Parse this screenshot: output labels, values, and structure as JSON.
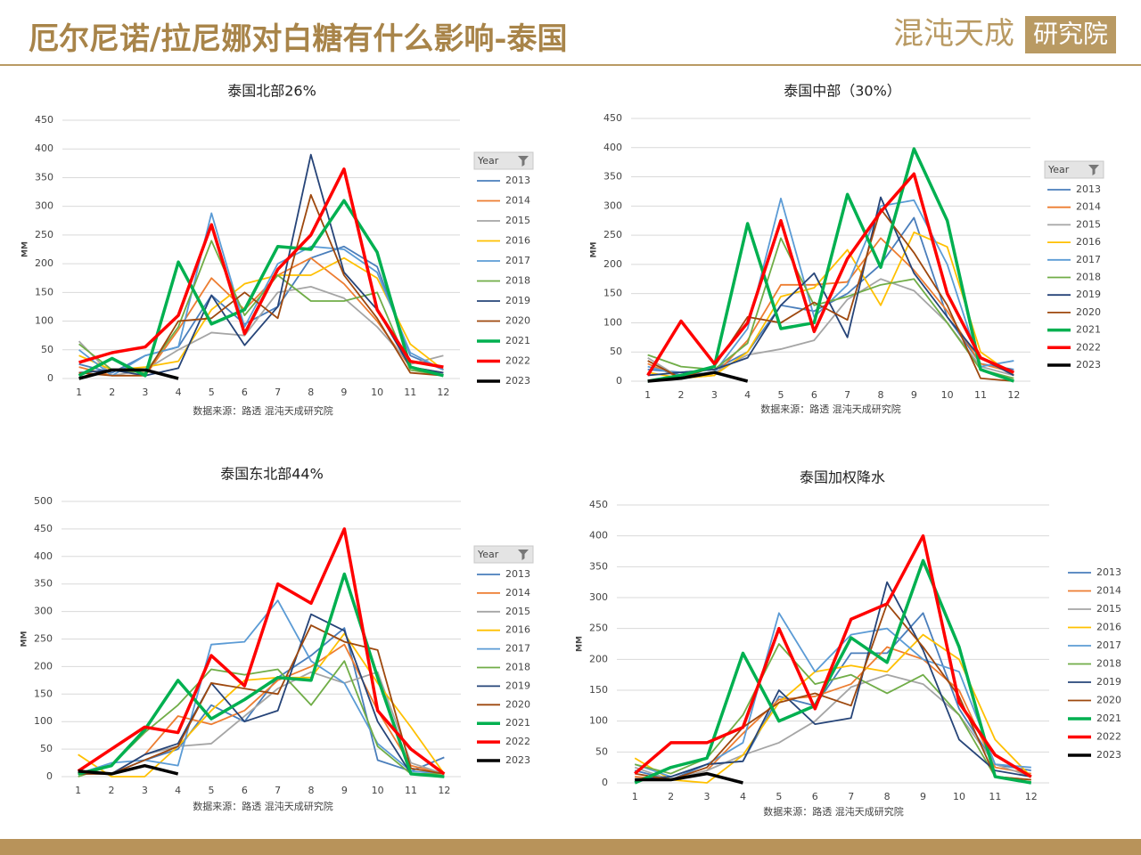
{
  "header": {
    "title": "厄尔尼诺/拉尼娜对白糖有什么影响-泰国",
    "logo": "混沌天成",
    "logo_badge": "研究院"
  },
  "chart_data": [
    {
      "type": "line",
      "title": "泰国北部26%",
      "ylabel": "MM",
      "source": "数据来源：路透 混沌天成研究院",
      "legend_title": "Year",
      "legend": "right",
      "grid": true,
      "categories": [
        1,
        2,
        3,
        4,
        5,
        6,
        7,
        8,
        9,
        10,
        11,
        12
      ],
      "ylim": [
        0,
        450
      ],
      "yticks": [
        0,
        50,
        100,
        150,
        200,
        250,
        300,
        350,
        400,
        450
      ],
      "series": [
        {
          "name": "2013",
          "color": "#4a7ebb",
          "values": [
            25,
            10,
            40,
            55,
            145,
            95,
            125,
            210,
            230,
            195,
            40,
            15
          ]
        },
        {
          "name": "2014",
          "color": "#ed7d31",
          "values": [
            20,
            5,
            5,
            85,
            175,
            120,
            180,
            210,
            165,
            100,
            20,
            10
          ]
        },
        {
          "name": "2015",
          "color": "#a5a5a5",
          "values": [
            65,
            5,
            15,
            50,
            80,
            75,
            150,
            160,
            140,
            90,
            25,
            40
          ]
        },
        {
          "name": "2016",
          "color": "#ffc000",
          "values": [
            40,
            15,
            20,
            30,
            120,
            165,
            180,
            180,
            210,
            175,
            60,
            15
          ]
        },
        {
          "name": "2017",
          "color": "#5b9bd5",
          "values": [
            50,
            5,
            40,
            55,
            288,
            90,
            200,
            230,
            225,
            185,
            45,
            15
          ]
        },
        {
          "name": "2018",
          "color": "#70ad47",
          "values": [
            60,
            15,
            10,
            90,
            240,
            110,
            180,
            135,
            135,
            150,
            15,
            5
          ]
        },
        {
          "name": "2019",
          "color": "#264478",
          "values": [
            10,
            15,
            5,
            18,
            145,
            58,
            125,
            390,
            185,
            120,
            20,
            10
          ]
        },
        {
          "name": "2020",
          "color": "#9e480e",
          "values": [
            10,
            5,
            5,
            100,
            105,
            150,
            105,
            320,
            180,
            105,
            10,
            5
          ]
        },
        {
          "name": "2021",
          "color": "#00b050",
          "width": 3.5,
          "values": [
            5,
            35,
            5,
            203,
            95,
            120,
            230,
            225,
            310,
            220,
            20,
            5
          ]
        },
        {
          "name": "2022",
          "color": "#ff0000",
          "width": 3.5,
          "values": [
            28,
            45,
            55,
            110,
            268,
            78,
            190,
            250,
            365,
            120,
            30,
            20
          ]
        },
        {
          "name": "2023",
          "color": "#000000",
          "width": 3.5,
          "values": [
            0,
            15,
            15,
            0,
            null,
            null,
            null,
            null,
            null,
            null,
            null,
            null
          ]
        }
      ]
    },
    {
      "type": "line",
      "title": "泰国中部（30%）",
      "ylabel": "MM",
      "source": "数据来源：路透 混沌天成研究院",
      "legend_title": "Year",
      "legend": "right",
      "grid": true,
      "categories": [
        1,
        2,
        3,
        4,
        5,
        6,
        7,
        8,
        9,
        10,
        11,
        12
      ],
      "ylim": [
        0,
        450
      ],
      "yticks": [
        0,
        50,
        100,
        150,
        200,
        250,
        300,
        350,
        400,
        450
      ],
      "series": [
        {
          "name": "2013",
          "color": "#4a7ebb",
          "values": [
            20,
            15,
            20,
            50,
            130,
            120,
            150,
            200,
            280,
            110,
            30,
            20
          ]
        },
        {
          "name": "2014",
          "color": "#ed7d31",
          "values": [
            30,
            5,
            10,
            70,
            165,
            165,
            170,
            245,
            190,
            120,
            30,
            15
          ]
        },
        {
          "name": "2015",
          "color": "#a5a5a5",
          "values": [
            40,
            5,
            15,
            45,
            55,
            70,
            140,
            175,
            155,
            100,
            25,
            10
          ]
        },
        {
          "name": "2016",
          "color": "#ffc000",
          "values": [
            15,
            5,
            10,
            50,
            145,
            160,
            225,
            130,
            255,
            230,
            50,
            10
          ]
        },
        {
          "name": "2017",
          "color": "#5b9bd5",
          "values": [
            25,
            10,
            15,
            90,
            313,
            110,
            165,
            300,
            310,
            200,
            25,
            35
          ]
        },
        {
          "name": "2018",
          "color": "#70ad47",
          "values": [
            45,
            25,
            20,
            65,
            245,
            130,
            145,
            165,
            175,
            100,
            20,
            5
          ]
        },
        {
          "name": "2019",
          "color": "#264478",
          "values": [
            10,
            15,
            20,
            40,
            130,
            185,
            75,
            315,
            185,
            110,
            40,
            10
          ]
        },
        {
          "name": "2020",
          "color": "#9e480e",
          "values": [
            35,
            5,
            25,
            110,
            100,
            135,
            105,
            295,
            220,
            130,
            5,
            0
          ]
        },
        {
          "name": "2021",
          "color": "#00b050",
          "width": 3.5,
          "values": [
            0,
            10,
            25,
            270,
            90,
            100,
            320,
            195,
            398,
            275,
            20,
            0
          ]
        },
        {
          "name": "2022",
          "color": "#ff0000",
          "width": 3.5,
          "values": [
            10,
            103,
            30,
            100,
            275,
            85,
            210,
            290,
            355,
            150,
            40,
            15
          ]
        },
        {
          "name": "2023",
          "color": "#000000",
          "width": 3.5,
          "values": [
            0,
            5,
            15,
            0,
            null,
            null,
            null,
            null,
            null,
            null,
            null,
            null
          ]
        }
      ]
    },
    {
      "type": "line",
      "title": "泰国东北部44%",
      "ylabel": "MM",
      "source": "数据来源：路透 混沌天成研究院",
      "legend_title": "Year",
      "legend": "right",
      "grid": true,
      "categories": [
        1,
        2,
        3,
        4,
        5,
        6,
        7,
        8,
        9,
        10,
        11,
        12
      ],
      "ylim": [
        0,
        500
      ],
      "yticks": [
        0,
        50,
        100,
        150,
        200,
        250,
        300,
        350,
        400,
        450,
        500
      ],
      "series": [
        {
          "name": "2013",
          "color": "#4a7ebb",
          "values": [
            10,
            5,
            30,
            50,
            130,
            100,
            180,
            220,
            270,
            30,
            10,
            35
          ]
        },
        {
          "name": "2014",
          "color": "#ed7d31",
          "values": [
            5,
            5,
            40,
            110,
            95,
            120,
            175,
            200,
            240,
            120,
            20,
            5
          ]
        },
        {
          "name": "2015",
          "color": "#a5a5a5",
          "values": [
            5,
            5,
            40,
            55,
            60,
            110,
            160,
            190,
            170,
            190,
            25,
            5
          ]
        },
        {
          "name": "2016",
          "color": "#ffc000",
          "values": [
            40,
            0,
            0,
            55,
            120,
            175,
            180,
            180,
            260,
            170,
            90,
            5
          ]
        },
        {
          "name": "2017",
          "color": "#5b9bd5",
          "values": [
            5,
            25,
            30,
            20,
            240,
            245,
            320,
            210,
            170,
            60,
            10,
            5
          ]
        },
        {
          "name": "2018",
          "color": "#70ad47",
          "values": [
            0,
            20,
            80,
            130,
            195,
            185,
            195,
            130,
            210,
            55,
            5,
            5
          ]
        },
        {
          "name": "2019",
          "color": "#264478",
          "values": [
            5,
            5,
            40,
            60,
            170,
            100,
            120,
            295,
            265,
            100,
            5,
            0
          ]
        },
        {
          "name": "2020",
          "color": "#9e480e",
          "values": [
            5,
            5,
            30,
            55,
            170,
            160,
            150,
            275,
            245,
            230,
            15,
            5
          ]
        },
        {
          "name": "2021",
          "color": "#00b050",
          "width": 3.5,
          "values": [
            5,
            20,
            85,
            175,
            105,
            140,
            180,
            175,
            368,
            180,
            5,
            0
          ]
        },
        {
          "name": "2022",
          "color": "#ff0000",
          "width": 3.5,
          "values": [
            10,
            50,
            90,
            80,
            220,
            165,
            350,
            315,
            450,
            120,
            50,
            5
          ]
        },
        {
          "name": "2023",
          "color": "#000000",
          "width": 3.5,
          "values": [
            10,
            5,
            20,
            5,
            null,
            null,
            null,
            null,
            null,
            null,
            null,
            null
          ]
        }
      ]
    },
    {
      "type": "line",
      "title": "泰国加权降水",
      "ylabel": "MM",
      "source": "数据来源：路透 混沌天成研究院",
      "legend": "right",
      "grid": true,
      "categories": [
        1,
        2,
        3,
        4,
        5,
        6,
        7,
        8,
        9,
        10,
        11,
        12
      ],
      "ylim": [
        0,
        450
      ],
      "yticks": [
        0,
        50,
        100,
        150,
        200,
        250,
        300,
        350,
        400,
        450
      ],
      "series": [
        {
          "name": "2013",
          "color": "#4a7ebb",
          "values": [
            20,
            5,
            30,
            35,
            140,
            125,
            210,
            210,
            275,
            120,
            30,
            20
          ]
        },
        {
          "name": "2014",
          "color": "#ed7d31",
          "values": [
            10,
            5,
            20,
            80,
            135,
            140,
            160,
            220,
            200,
            150,
            25,
            15
          ]
        },
        {
          "name": "2015",
          "color": "#a5a5a5",
          "values": [
            25,
            5,
            20,
            45,
            65,
            100,
            155,
            175,
            160,
            110,
            30,
            10
          ]
        },
        {
          "name": "2016",
          "color": "#ffc000",
          "values": [
            40,
            5,
            0,
            45,
            130,
            180,
            190,
            180,
            240,
            200,
            70,
            10
          ]
        },
        {
          "name": "2017",
          "color": "#5b9bd5",
          "values": [
            30,
            10,
            30,
            65,
            275,
            180,
            240,
            250,
            200,
            180,
            30,
            25
          ]
        },
        {
          "name": "2018",
          "color": "#70ad47",
          "values": [
            30,
            15,
            40,
            110,
            225,
            160,
            175,
            145,
            175,
            110,
            10,
            5
          ]
        },
        {
          "name": "2019",
          "color": "#264478",
          "values": [
            5,
            10,
            30,
            35,
            150,
            95,
            105,
            325,
            215,
            70,
            20,
            10
          ]
        },
        {
          "name": "2020",
          "color": "#9e480e",
          "values": [
            15,
            5,
            25,
            90,
            130,
            145,
            125,
            290,
            220,
            140,
            10,
            5
          ]
        },
        {
          "name": "2021",
          "color": "#00b050",
          "width": 3.5,
          "values": [
            0,
            25,
            40,
            210,
            100,
            125,
            235,
            195,
            360,
            220,
            10,
            0
          ]
        },
        {
          "name": "2022",
          "color": "#ff0000",
          "width": 3.5,
          "values": [
            15,
            65,
            65,
            90,
            250,
            120,
            265,
            290,
            400,
            130,
            45,
            10
          ]
        },
        {
          "name": "2023",
          "color": "#000000",
          "width": 3.5,
          "values": [
            5,
            5,
            15,
            0,
            null,
            null,
            null,
            null,
            null,
            null,
            null,
            null
          ]
        }
      ]
    }
  ]
}
